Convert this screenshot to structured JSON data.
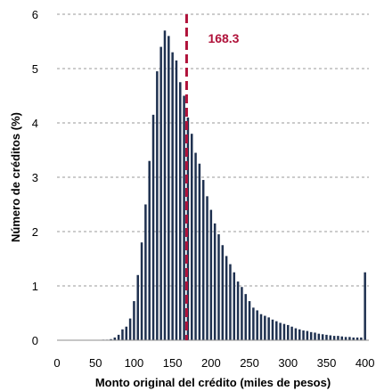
{
  "chart_data": {
    "type": "bar",
    "xlabel": "Monto original del crédito (miles de pesos)",
    "ylabel": "Número de créditos (%)",
    "xlim": [
      0,
      405
    ],
    "ylim": [
      0,
      6
    ],
    "xticks": [
      0,
      50,
      100,
      150,
      200,
      250,
      300,
      350,
      400
    ],
    "yticks": [
      0,
      1,
      2,
      3,
      4,
      5,
      6
    ],
    "grid": "horizontal dashed",
    "bin_width": 5,
    "bar_color": "#1f3150",
    "x": [
      5,
      10,
      15,
      20,
      25,
      30,
      35,
      40,
      45,
      50,
      55,
      60,
      65,
      70,
      75,
      80,
      85,
      90,
      95,
      100,
      105,
      110,
      115,
      120,
      125,
      130,
      135,
      140,
      145,
      150,
      155,
      160,
      165,
      170,
      175,
      180,
      185,
      190,
      195,
      200,
      205,
      210,
      215,
      220,
      225,
      230,
      235,
      240,
      245,
      250,
      255,
      260,
      265,
      270,
      275,
      280,
      285,
      290,
      295,
      300,
      305,
      310,
      315,
      320,
      325,
      330,
      335,
      340,
      345,
      350,
      355,
      360,
      365,
      370,
      375,
      380,
      385,
      390,
      395,
      400
    ],
    "values": [
      0,
      0,
      0,
      0,
      0,
      0,
      0,
      0,
      0,
      0,
      0,
      0.01,
      0.01,
      0.02,
      0.05,
      0.1,
      0.2,
      0.25,
      0.4,
      0.72,
      1.2,
      1.8,
      2.5,
      3.3,
      4.15,
      4.95,
      5.4,
      5.7,
      5.6,
      5.3,
      5.15,
      4.75,
      4.5,
      4.1,
      3.8,
      3.45,
      3.25,
      2.95,
      2.65,
      2.4,
      2.15,
      1.95,
      1.75,
      1.55,
      1.4,
      1.25,
      1.08,
      0.98,
      0.85,
      0.72,
      0.6,
      0.55,
      0.48,
      0.45,
      0.42,
      0.38,
      0.35,
      0.32,
      0.3,
      0.28,
      0.25,
      0.22,
      0.2,
      0.18,
      0.17,
      0.15,
      0.14,
      0.12,
      0.11,
      0.1,
      0.09,
      0.08,
      0.08,
      0.07,
      0.06,
      0.06,
      0.05,
      0.05,
      0.05,
      1.25
    ],
    "reference_line": {
      "x": 168.3,
      "label": "168.3",
      "color": "#b0123a",
      "style": "dashed"
    }
  }
}
